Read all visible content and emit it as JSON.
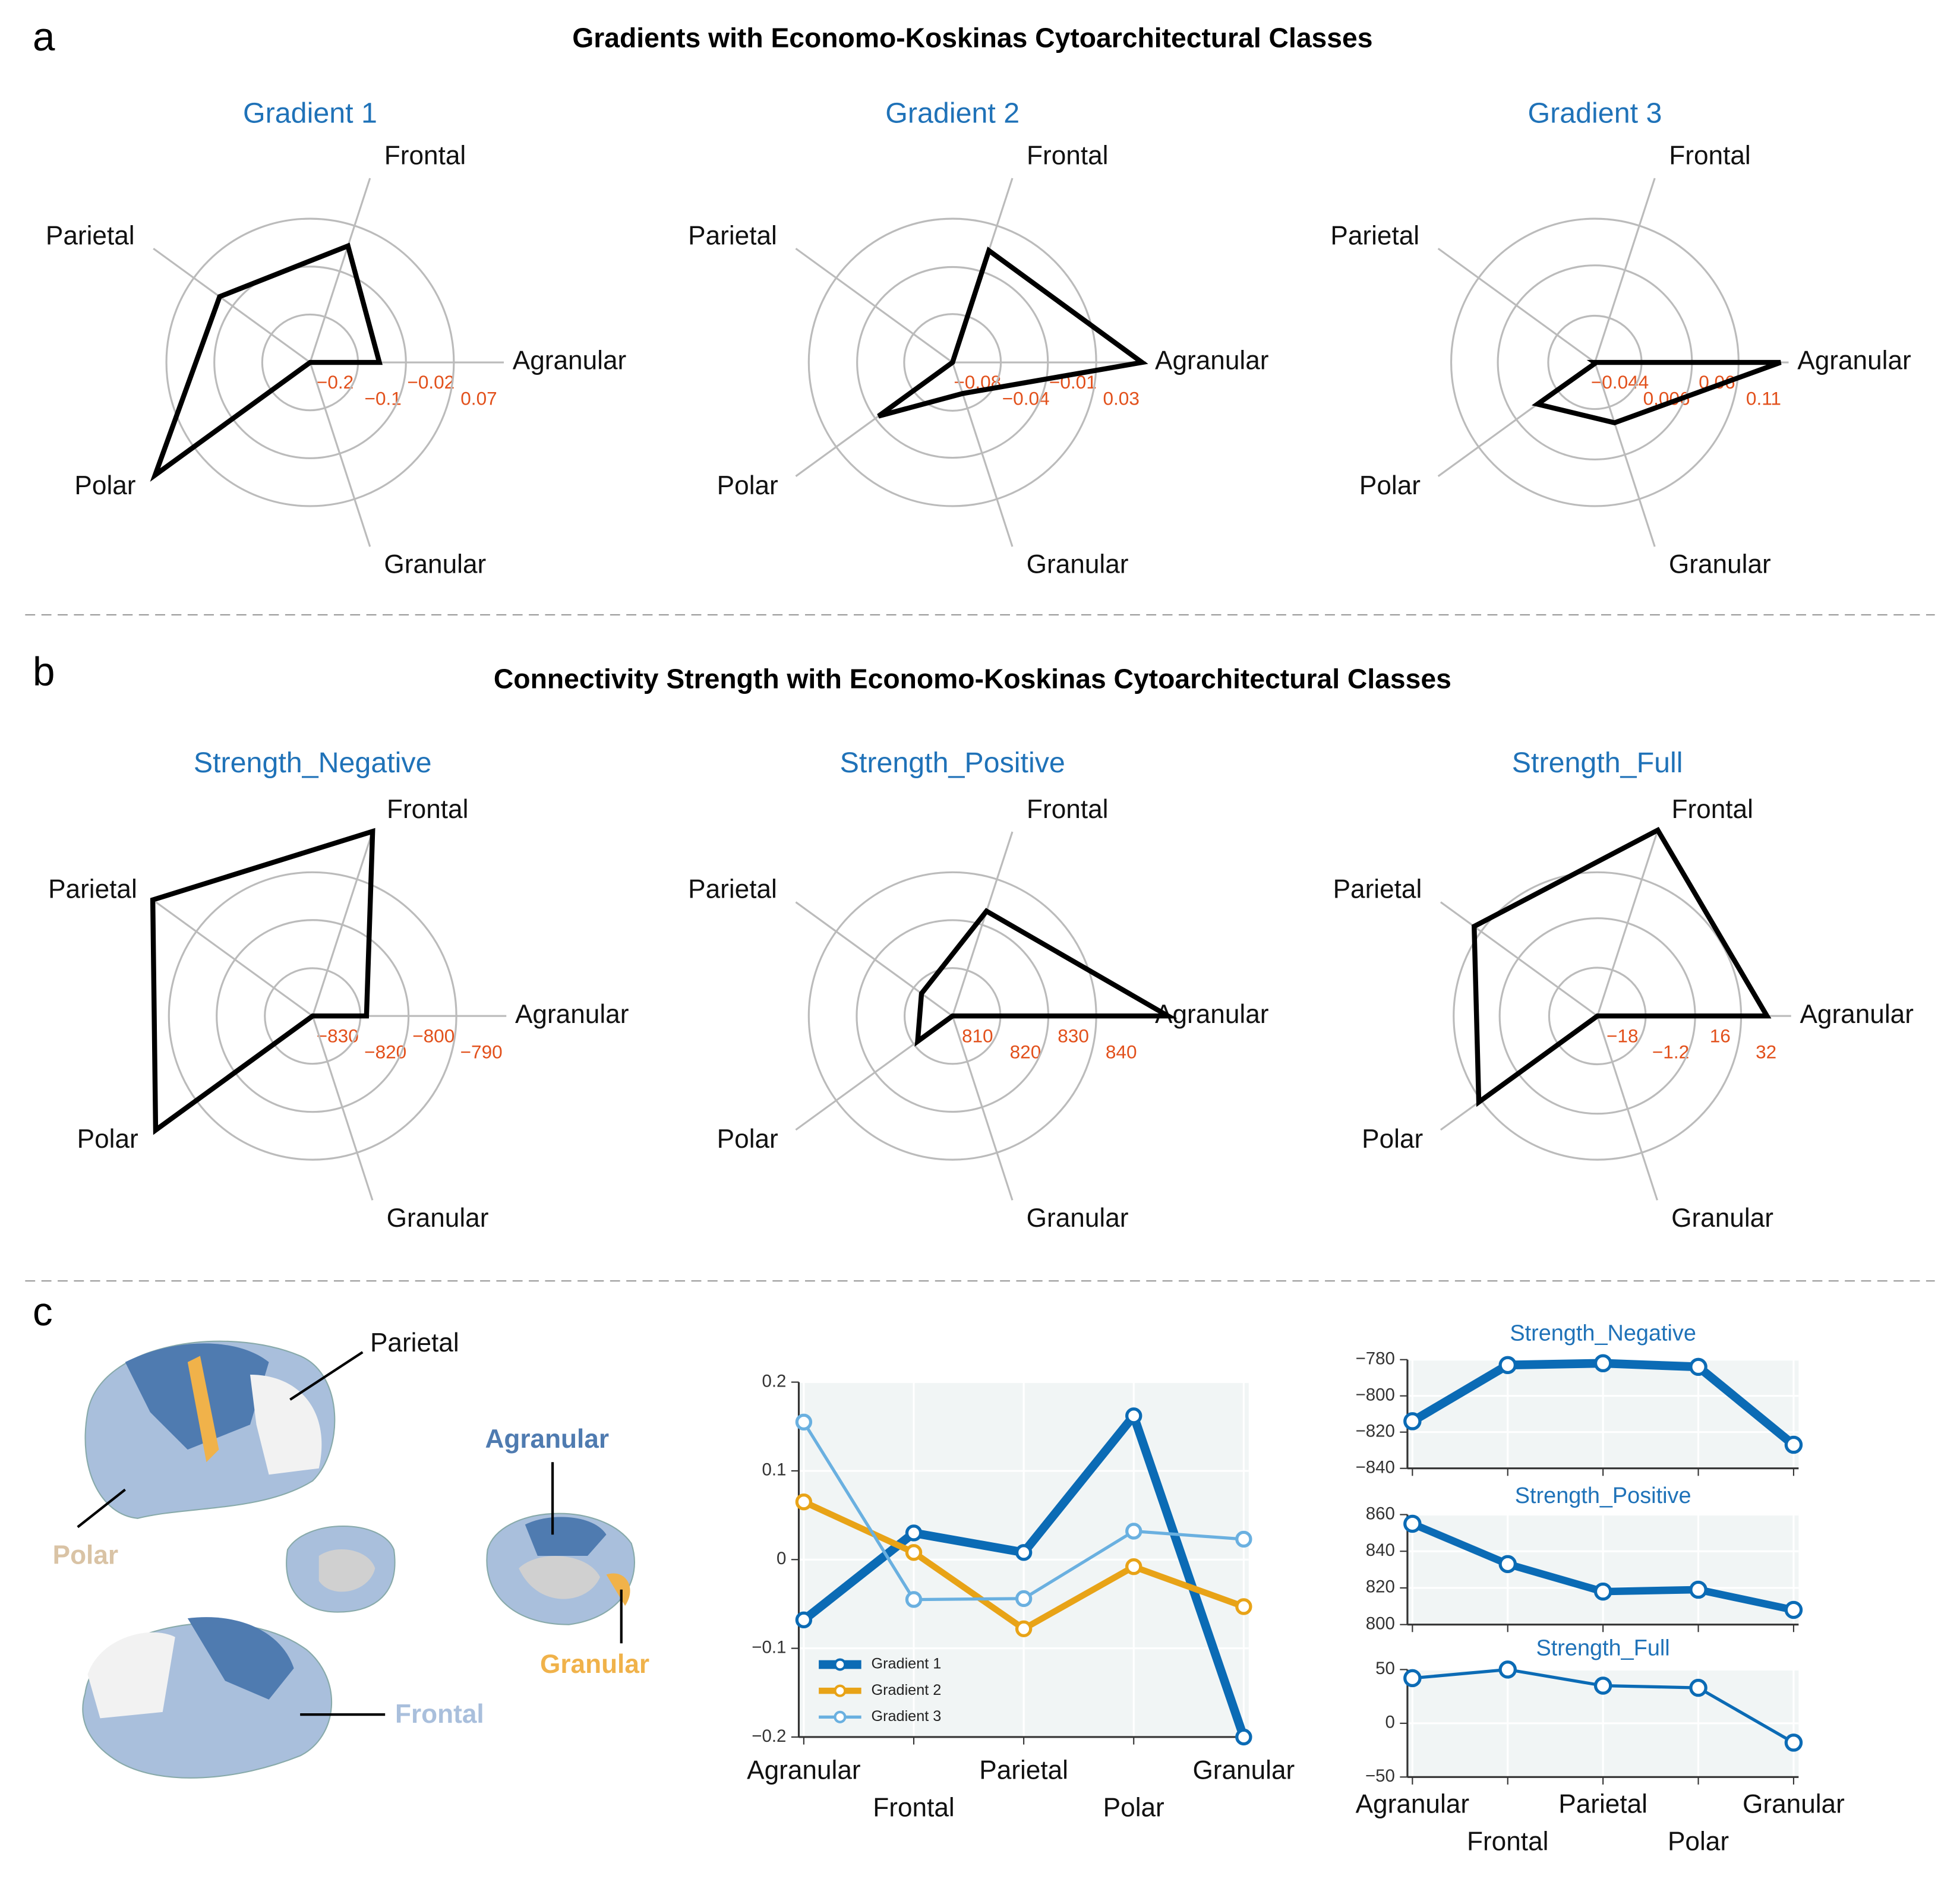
{
  "panels": [
    {
      "label": "a",
      "title": "Gradients with Economo-Koskinas Cytoarchitectural Classes"
    },
    {
      "label": "b",
      "title": "Connectivity Strength with Economo-Koskinas Cytoarchitectural Classes"
    },
    {
      "label": "c"
    }
  ],
  "brain_labels": [
    "Parietal",
    "Polar",
    "Agranular",
    "Granular",
    "Frontal"
  ],
  "chart_data": [
    {
      "type": "radar",
      "title": "Gradient 1",
      "categories": [
        "Agranular",
        "Frontal",
        "Parietal",
        "Polar",
        "Granular"
      ],
      "values": [
        -0.07,
        0.03,
        0.01,
        0.16,
        -0.2
      ],
      "color": "#000000",
      "rlim": [
        -0.2,
        0.07
      ],
      "rticks": [
        {
          "value": -0.2,
          "label": "−0.2"
        },
        {
          "value": -0.11,
          "label": "−0.1"
        },
        {
          "value": -0.02,
          "label": "−0.02"
        },
        0.07
      ]
    },
    {
      "type": "radar",
      "title": "Gradient 2",
      "categories": [
        "Agranular",
        "Frontal",
        "Parietal",
        "Polar",
        "Granular"
      ],
      "values": [
        0.065,
        0.01,
        -0.08,
        -0.01,
        -0.055
      ],
      "color": "#000000",
      "rlim": [
        -0.08,
        0.03
      ],
      "rticks": [
        {
          "value": -0.08,
          "label": "−0.08"
        },
        {
          "value": -0.043,
          "label": "−0.04"
        },
        {
          "value": -0.007,
          "label": "−0.01"
        },
        0.03
      ]
    },
    {
      "type": "radar",
      "title": "Gradient 3",
      "categories": [
        "Agranular",
        "Frontal",
        "Parietal",
        "Polar",
        "Granular"
      ],
      "values": [
        0.155,
        -0.044,
        -0.045,
        0.032,
        0.024
      ],
      "color": "#000000",
      "rlim": [
        -0.044,
        0.11
      ],
      "rticks": [
        {
          "value": -0.044,
          "label": "−0.044"
        },
        0.006,
        0.06,
        0.11
      ]
    },
    {
      "type": "radar",
      "title": "Strength_Negative",
      "categories": [
        "Agranular",
        "Frontal",
        "Parietal",
        "Polar",
        "Granular"
      ],
      "values": [
        -815,
        -776,
        -775,
        -776,
        -830
      ],
      "color": "#000000",
      "rlim": [
        -830,
        -790
      ],
      "rticks": [
        {
          "value": -830,
          "label": "−830"
        },
        {
          "value": -816.7,
          "label": "−820"
        },
        {
          "value": -803.3,
          "label": "−800"
        },
        {
          "value": -790,
          "label": "−790"
        }
      ]
    },
    {
      "type": "radar",
      "title": "Strength_Positive",
      "categories": [
        "Agranular",
        "Frontal",
        "Parietal",
        "Polar",
        "Granular"
      ],
      "values": [
        855,
        833,
        818,
        819,
        810
      ],
      "color": "#000000",
      "rlim": [
        810,
        840
      ],
      "rticks": [
        810,
        820,
        830,
        840
      ]
    },
    {
      "type": "radar",
      "title": "Strength_Full",
      "categories": [
        "Agranular",
        "Frontal",
        "Parietal",
        "Polar",
        "Granular"
      ],
      "values": [
        41,
        50,
        35,
        33,
        -18
      ],
      "color": "#000000",
      "rlim": [
        -18,
        32
      ],
      "rticks": [
        {
          "value": -18,
          "label": "−18"
        },
        {
          "value": -1.2,
          "label": "−1.2"
        },
        16,
        32
      ]
    },
    {
      "type": "line",
      "categories": [
        "Agranular",
        "Frontal",
        "Parietal",
        "Polar",
        "Granular"
      ],
      "series": [
        {
          "name": "Gradient 1",
          "color": "#0b6bb5",
          "values": [
            -0.068,
            0.03,
            0.008,
            0.162,
            -0.2
          ]
        },
        {
          "name": "Gradient 2",
          "color": "#e8a317",
          "values": [
            0.065,
            0.008,
            -0.078,
            -0.008,
            -0.053
          ]
        },
        {
          "name": "Gradient 3",
          "color": "#6ab0e0",
          "values": [
            0.155,
            -0.045,
            -0.044,
            0.032,
            0.023
          ]
        }
      ],
      "ylim": [
        -0.2,
        0.2
      ],
      "yticks": [
        {
          "value": -0.2,
          "label": "−0.2"
        },
        {
          "value": -0.1,
          "label": "−0.1"
        },
        0,
        0.1,
        0.2
      ],
      "grid": true,
      "legend": "lower left"
    },
    {
      "type": "line",
      "title": "Strength_Negative",
      "values": [
        -814,
        -783,
        -782,
        -784,
        -827
      ],
      "color": "#0b6bb5",
      "ylim": [
        -840,
        -780
      ],
      "yticks": [
        {
          "value": -840,
          "label": "−840"
        },
        {
          "value": -820,
          "label": "−820"
        },
        {
          "value": -800,
          "label": "−800"
        },
        {
          "value": -780,
          "label": "−780"
        }
      ],
      "grid": true
    },
    {
      "type": "line",
      "title": "Strength_Positive",
      "values": [
        855,
        833,
        818,
        819,
        808
      ],
      "color": "#0b6bb5",
      "ylim": [
        800,
        860
      ],
      "yticks": [
        800,
        820,
        840,
        860
      ],
      "grid": true
    },
    {
      "type": "line",
      "title": "Strength_Full",
      "categories": [
        "Agranular",
        "Frontal",
        "Parietal",
        "Polar",
        "Granular"
      ],
      "values": [
        42,
        50,
        35,
        33,
        -18
      ],
      "color": "#0b6bb5",
      "ylim": [
        -50,
        50
      ],
      "yticks": [
        {
          "value": -50,
          "label": "−50"
        },
        0,
        50
      ],
      "grid": true
    }
  ]
}
